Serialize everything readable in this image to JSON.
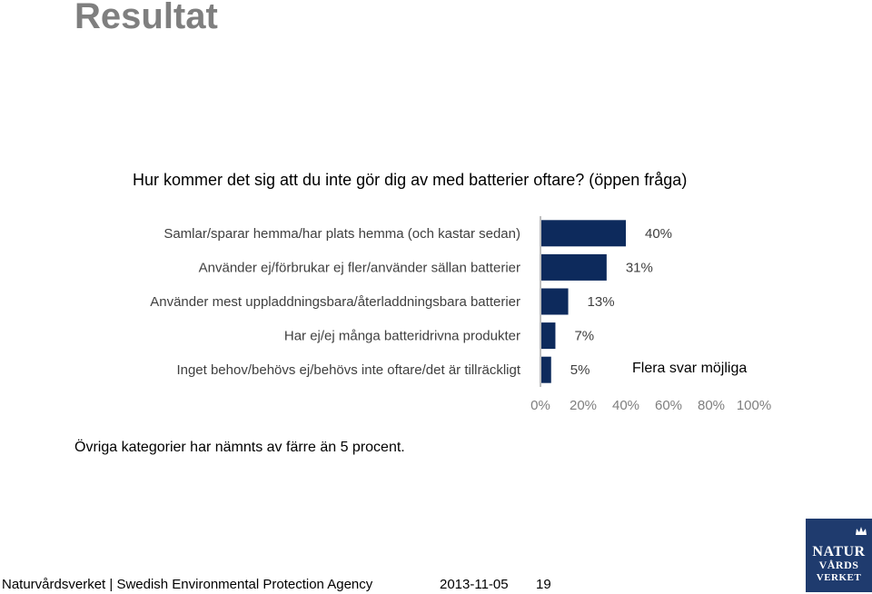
{
  "slide": {
    "title": "Resultat",
    "question": "Hur kommer det sig att du inte gör dig av med batterier oftare? (öppen fråga)",
    "inline_note": "Flera svar möjliga",
    "note": "Övriga kategorier har nämnts av färre än 5 procent."
  },
  "footer": {
    "org": "Naturvårdsverket | Swedish Environmental Protection Agency",
    "date": "2013-11-05",
    "page": "19"
  },
  "logo": {
    "line1": "NATUR",
    "line2": "VÅRDS",
    "line3": "VERKET"
  },
  "colors": {
    "bar": "#0d2a5c",
    "title": "#7f7f7f"
  },
  "chart_data": {
    "type": "bar",
    "orientation": "horizontal",
    "categories": [
      "Samlar/sparar hemma/har plats hemma (och kastar sedan)",
      "Använder ej/förbrukar ej fler/använder sällan batterier",
      "Använder mest uppladdningsbara/återladdningsbara batterier",
      "Har ej/ej många batteridrivna produkter",
      "Inget behov/behövs ej/behövs inte oftare/det är tillräckligt"
    ],
    "values": [
      40,
      31,
      13,
      7,
      5
    ],
    "value_labels": [
      "40%",
      "31%",
      "13%",
      "7%",
      "5%"
    ],
    "xlim": [
      0,
      100
    ],
    "x_ticks": [
      "0%",
      "20%",
      "40%",
      "60%",
      "80%",
      "100%"
    ],
    "grid": false
  }
}
